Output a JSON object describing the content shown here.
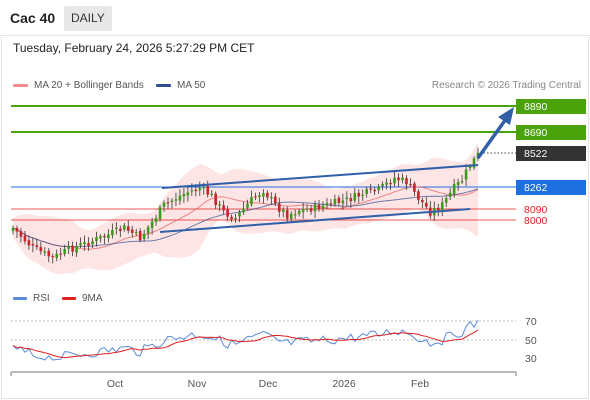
{
  "header": {
    "symbol": "Cac 40",
    "period": "DAILY"
  },
  "timestamp": "Tuesday, February 24, 2026 5:27:29 PM CET",
  "legend_main": [
    {
      "label": "MA 20 + Bollinger Bands",
      "color": "#f08c8c"
    },
    {
      "label": "MA 50",
      "color": "#2f4f8f"
    }
  ],
  "copyright": "Research © 2026 Trading Central",
  "colors": {
    "target": "#4ca20a",
    "pivot": "#1e6fe0",
    "last": "#333333",
    "support": "#e02020",
    "arrow": "#2f5fa8",
    "bollinger_fill": "#fde0e0",
    "ma20": "#e86a6a",
    "ma50": "#2f4f8f",
    "rsi": "#5b8ad6",
    "rsi_ma": "#e02020"
  },
  "levels": [
    {
      "value": "8890",
      "kind": "target"
    },
    {
      "value": "8690",
      "kind": "target"
    },
    {
      "value": "8522",
      "kind": "last"
    },
    {
      "value": "8262",
      "kind": "pivot"
    },
    {
      "value": "8090",
      "kind": "support"
    },
    {
      "value": "8000",
      "kind": "support"
    }
  ],
  "x_axis": [
    "Oct",
    "Nov",
    "Dec",
    "2026",
    "Feb"
  ],
  "legend_rsi": [
    {
      "label": "RSI",
      "color": "#5b8ad6"
    },
    {
      "label": "9MA",
      "color": "#e02020"
    }
  ],
  "rsi_axis": [
    "70",
    "50",
    "30"
  ]
}
